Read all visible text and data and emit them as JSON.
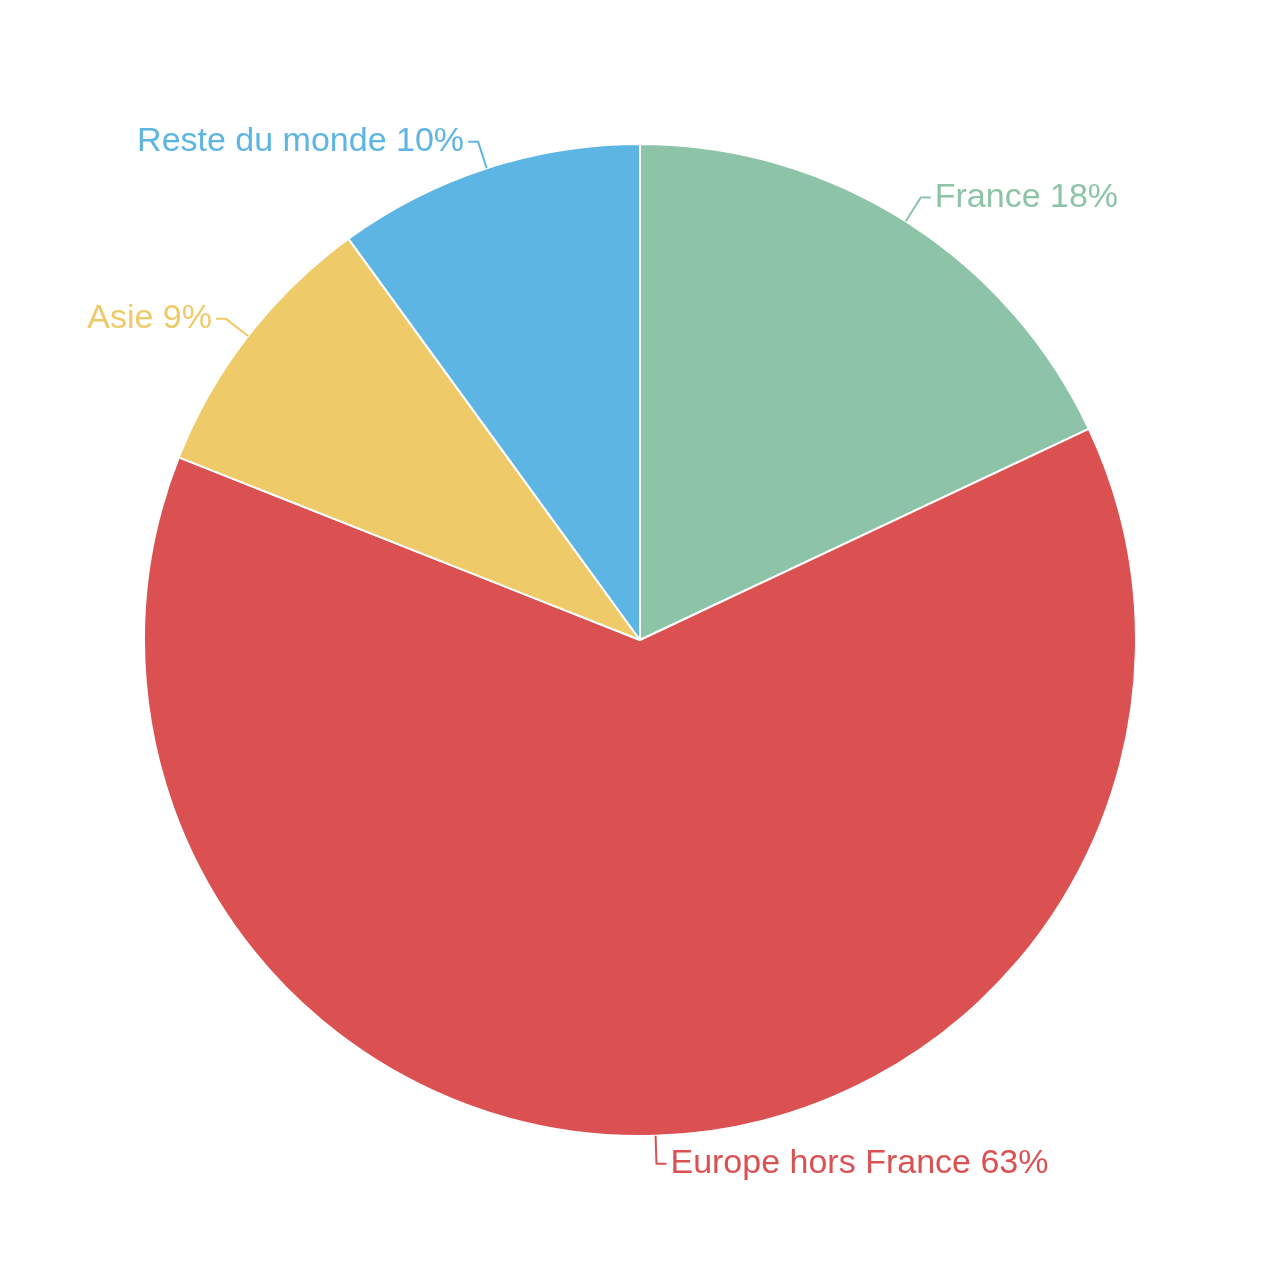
{
  "chart_data": {
    "type": "pie",
    "categories": [
      "France",
      "Europe hors France",
      "Asie",
      "Reste du monde"
    ],
    "values": [
      18,
      63,
      9,
      10
    ],
    "value_labels": [
      "18%",
      "63%",
      "9%",
      "10%"
    ],
    "colors": [
      "#8dc3a7",
      "#db5152",
      "#efca69",
      "#5db5e3"
    ],
    "legend": false
  }
}
